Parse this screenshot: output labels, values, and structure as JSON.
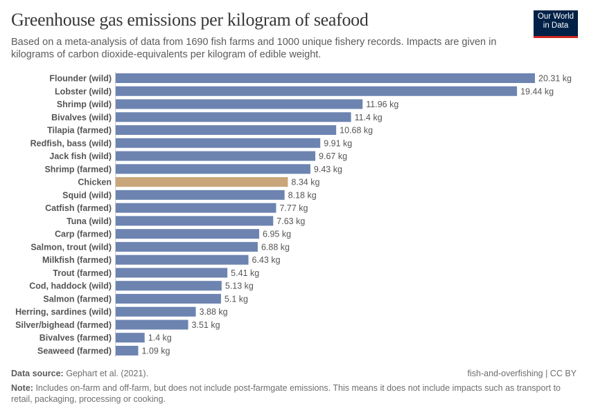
{
  "header": {
    "title": "Greenhouse gas emissions per kilogram of seafood",
    "subtitle": "Based on a meta-analysis of data from 1690 fish farms and 1000 unique fishery records. Impacts are given in kilograms of carbon dioxide-equivalents per kilogram of edible weight.",
    "logo_text": "Our World in Data"
  },
  "chart_data": {
    "type": "bar",
    "orientation": "horizontal",
    "unit": "kg",
    "categories": [
      "Flounder (wild)",
      "Lobster (wild)",
      "Shrimp (wild)",
      "Bivalves (wild)",
      "Tilapia (farmed)",
      "Redfish, bass (wild)",
      "Jack fish (wild)",
      "Shrimp (farmed)",
      "Chicken",
      "Squid (wild)",
      "Catfish (farmed)",
      "Tuna (wild)",
      "Carp (farmed)",
      "Salmon, trout (wild)",
      "Milkfish (farmed)",
      "Trout (farmed)",
      "Cod, haddock (wild)",
      "Salmon (farmed)",
      "Herring, sardines (wild)",
      "Silver/bighead (farmed)",
      "Bivalves (farmed)",
      "Seaweed (farmed)"
    ],
    "values": [
      20.31,
      19.44,
      11.96,
      11.4,
      10.68,
      9.91,
      9.67,
      9.43,
      8.34,
      8.18,
      7.77,
      7.63,
      6.95,
      6.88,
      6.43,
      5.41,
      5.13,
      5.1,
      3.88,
      3.51,
      1.4,
      1.09
    ],
    "value_labels": [
      "20.31 kg",
      "19.44 kg",
      "11.96 kg",
      "11.4 kg",
      "10.68 kg",
      "9.91 kg",
      "9.67 kg",
      "9.43 kg",
      "8.34 kg",
      "8.18 kg",
      "7.77 kg",
      "7.63 kg",
      "6.95 kg",
      "6.88 kg",
      "6.43 kg",
      "5.41 kg",
      "5.13 kg",
      "5.1 kg",
      "3.88 kg",
      "3.51 kg",
      "1.4 kg",
      "1.09 kg"
    ],
    "colors": {
      "default": "#6d84b1",
      "highlight": "#c9a57a"
    },
    "highlight": "Chicken",
    "grid": false
  },
  "footer": {
    "source_label": "Data source:",
    "source_text": "Gephart et al. (2021).",
    "license": "fish-and-overfishing | CC BY",
    "note_label": "Note:",
    "note_text": "Includes on-farm and off-farm, but does not include post-farmgate emissions. This means it does not include impacts such as transport to retail, packaging, processing or cooking."
  }
}
